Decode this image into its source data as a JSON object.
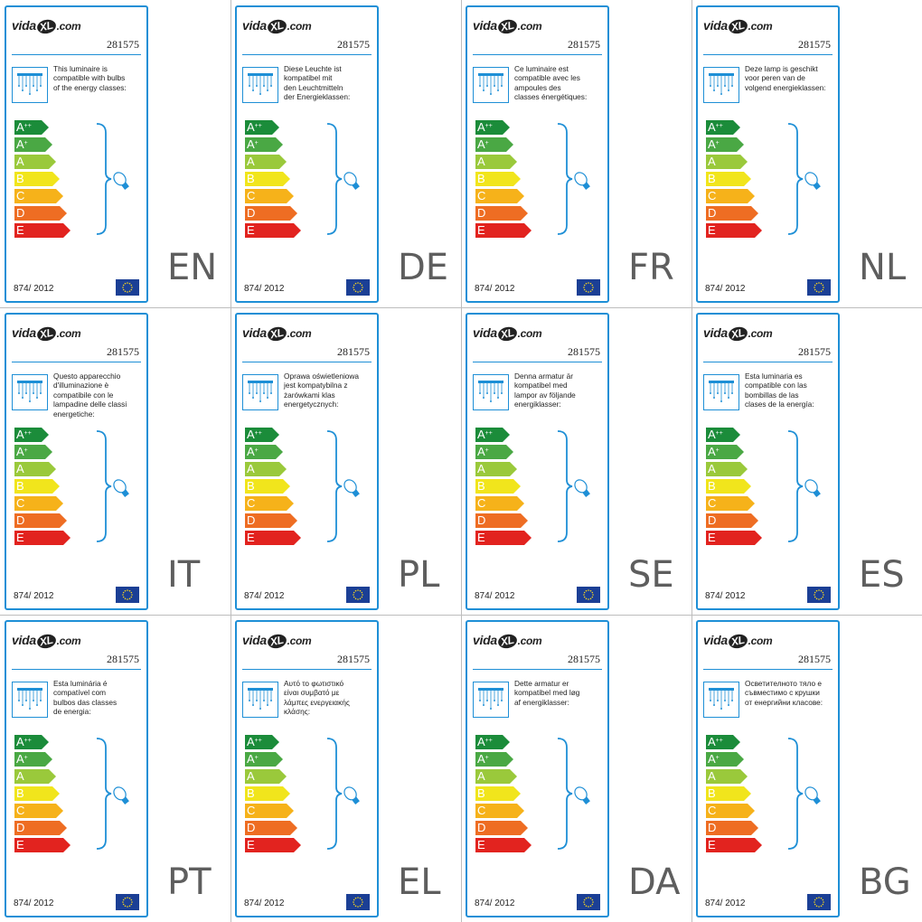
{
  "brand": {
    "main": "vida",
    "badge": "XL",
    "suffix": ".com"
  },
  "product_code": "281575",
  "regulation": "874/ 2012",
  "energy_classes": [
    {
      "base": "A",
      "sup": "++",
      "color": "#1b8c3a"
    },
    {
      "base": "A",
      "sup": "+",
      "color": "#4aa844"
    },
    {
      "base": "A",
      "sup": "",
      "color": "#9ac93b"
    },
    {
      "base": "B",
      "sup": "",
      "color": "#f1e51c"
    },
    {
      "base": "C",
      "sup": "",
      "color": "#f6b21a"
    },
    {
      "base": "D",
      "sup": "",
      "color": "#ee6d23"
    },
    {
      "base": "E",
      "sup": "",
      "color": "#e2231f"
    }
  ],
  "accent_color": "#1e8fd6",
  "icons": [
    "luminaire-icon",
    "bulb-icon",
    "eu-flag-icon"
  ],
  "labels": [
    {
      "lang": "EN",
      "text": "This luminaire is\ncompatible with bulbs\nof the energy classes:"
    },
    {
      "lang": "DE",
      "text": "Diese Leuchte ist\nkompatibel mit\nden Leuchtmitteln\nder Energieklassen:"
    },
    {
      "lang": "FR",
      "text": "Ce luminaire est\ncompatible avec les\nampoules des\nclasses énergétiques:"
    },
    {
      "lang": "NL",
      "text": "Deze lamp is geschikt\nvoor peren van de\nvolgend energieklassen:"
    },
    {
      "lang": "IT",
      "text": "Questo apparecchio\nd'illuminazione è\ncompatibile con le\nlampadine delle classi\nenergetiche:"
    },
    {
      "lang": "PL",
      "text": "Oprawa oświetleniowa\njest kompatybilna z\nżarówkami klas\nenergetycznych:"
    },
    {
      "lang": "SE",
      "text": "Denna armatur är\nkompatibel med\nlampor av följande\nenergiklasser:"
    },
    {
      "lang": "ES",
      "text": "Esta luminaria es\ncompatible con las\nbombillas de las\nclases de la energía:"
    },
    {
      "lang": "PT",
      "text": "Esta luminária é\ncompatível com\nbulbos das classes\nde energia:"
    },
    {
      "lang": "EL",
      "text": "Αυτό το φωτιστικό\nείναι συμβατό με\nλάμπες ενεργειακής\nκλάσης:"
    },
    {
      "lang": "DA",
      "text": "Dette armatur er\nkompatibel med løg\naf energiklasser:"
    },
    {
      "lang": "BG",
      "text": "Осветителното тяло е\nсъвместимо с крушки\nот енергийни класове:"
    }
  ]
}
